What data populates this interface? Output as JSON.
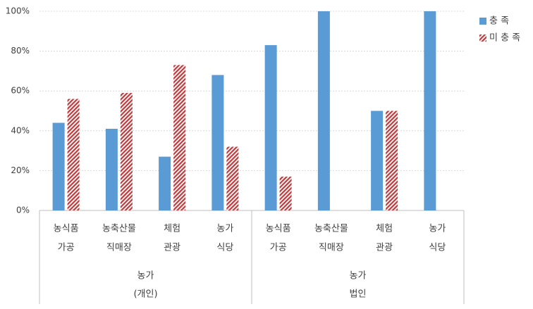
{
  "chart_data": {
    "type": "bar",
    "groups": [
      {
        "name": [
          "농가",
          "(개인)"
        ],
        "categories": [
          [
            "농식품",
            "가공"
          ],
          [
            "농축산물",
            "직매장"
          ],
          [
            "체험",
            "관광"
          ],
          [
            "농가",
            "식당"
          ]
        ]
      },
      {
        "name": [
          "농가",
          "법인"
        ],
        "categories": [
          [
            "농식품",
            "가공"
          ],
          [
            "농축산물",
            "직매장"
          ],
          [
            "체험",
            "관광"
          ],
          [
            "농가",
            "식당"
          ]
        ]
      }
    ],
    "series": [
      {
        "name": "충  족",
        "color": "#5b9bd5",
        "values": [
          44,
          41,
          27,
          68,
          83,
          100,
          50,
          100
        ]
      },
      {
        "name": "미 충 족",
        "color": "#c0393b",
        "hatch": true,
        "values": [
          56,
          59,
          73,
          32,
          17,
          0,
          50,
          0
        ]
      }
    ],
    "ylim": [
      0,
      100
    ],
    "yticks": [
      {
        "value": 0,
        "label": "0%"
      },
      {
        "value": 20,
        "label": "20%"
      },
      {
        "value": 40,
        "label": "40%"
      },
      {
        "value": 60,
        "label": "60%"
      },
      {
        "value": 80,
        "label": "80%"
      },
      {
        "value": 100,
        "label": "100%"
      }
    ],
    "grid": true,
    "legend": "right"
  }
}
